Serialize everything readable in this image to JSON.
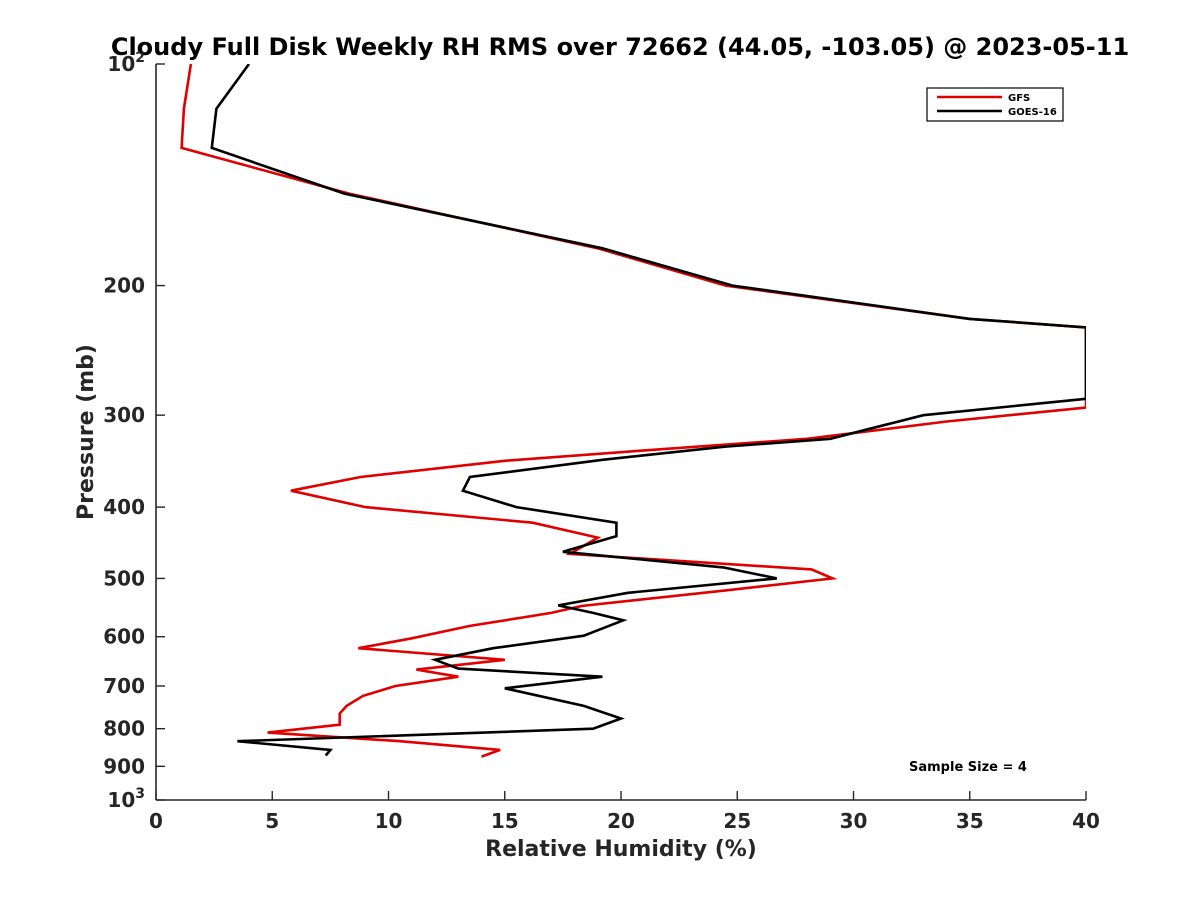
{
  "chart_data": {
    "type": "line",
    "title": "Cloudy Full Disk Weekly RH RMS over 72662 (44.05, -103.05) @ 2023-05-11",
    "xlabel": "Relative Humidity (%)",
    "ylabel": "Pressure (mb)",
    "xlim": [
      0,
      40
    ],
    "ylim": [
      100,
      1000
    ],
    "y_scale": "log",
    "y_reversed": true,
    "grid": false,
    "legend_position": "top-right",
    "x_ticks": [
      0,
      5,
      10,
      15,
      20,
      25,
      30,
      35,
      40
    ],
    "x_tick_labels": [
      "0",
      "5",
      "10",
      "15",
      "20",
      "25",
      "30",
      "35",
      "40"
    ],
    "y_ticks": [
      {
        "value": 200,
        "label": "200"
      },
      {
        "value": 300,
        "label": "300"
      },
      {
        "value": 400,
        "label": "400"
      },
      {
        "value": 500,
        "label": "500"
      },
      {
        "value": 600,
        "label": "600"
      },
      {
        "value": 700,
        "label": "700"
      },
      {
        "value": 800,
        "label": "800"
      },
      {
        "value": 900,
        "label": "900"
      }
    ],
    "y_power_ticks": [
      {
        "value": 100,
        "base": "10",
        "exp": "2"
      },
      {
        "value": 1000,
        "base": "10",
        "exp": "3"
      }
    ],
    "annotation": "Sample Size = 4",
    "series": [
      {
        "name": "GFS",
        "color": "#e00000",
        "points": [
          [
            1.5,
            100
          ],
          [
            1.2,
            115
          ],
          [
            1.1,
            130
          ],
          [
            8.3,
            150
          ],
          [
            19.0,
            178
          ],
          [
            24.5,
            200
          ],
          [
            35.0,
            222
          ],
          [
            40.0,
            228
          ],
          [
            40.0,
            293
          ],
          [
            34.0,
            306
          ],
          [
            28.0,
            323
          ],
          [
            21.0,
            335
          ],
          [
            15.0,
            346
          ],
          [
            8.8,
            364
          ],
          [
            5.8,
            380
          ],
          [
            9.0,
            400
          ],
          [
            16.2,
            420
          ],
          [
            19.0,
            440
          ],
          [
            17.8,
            463
          ],
          [
            28.2,
            486
          ],
          [
            29.1,
            500
          ],
          [
            24.5,
            519
          ],
          [
            18.3,
            545
          ],
          [
            17.0,
            557
          ],
          [
            13.5,
            580
          ],
          [
            11.0,
            603
          ],
          [
            8.7,
            622
          ],
          [
            15.0,
            645
          ],
          [
            11.2,
            665
          ],
          [
            13.0,
            680
          ],
          [
            10.3,
            700
          ],
          [
            8.9,
            722
          ],
          [
            8.2,
            745
          ],
          [
            7.9,
            763
          ],
          [
            7.9,
            790
          ],
          [
            4.8,
            810
          ],
          [
            10.5,
            832
          ],
          [
            14.8,
            855
          ],
          [
            14.0,
            873
          ]
        ]
      },
      {
        "name": "GOES-16",
        "color": "#000000",
        "points": [
          [
            4.0,
            100
          ],
          [
            2.6,
            115
          ],
          [
            2.4,
            130
          ],
          [
            8.1,
            150
          ],
          [
            19.2,
            178
          ],
          [
            24.8,
            200
          ],
          [
            35.0,
            222
          ],
          [
            40.0,
            228
          ],
          [
            40.0,
            285
          ],
          [
            33.0,
            300
          ],
          [
            29.0,
            323
          ],
          [
            24.5,
            331
          ],
          [
            19.2,
            345
          ],
          [
            13.5,
            364
          ],
          [
            13.2,
            380
          ],
          [
            15.5,
            400
          ],
          [
            19.8,
            420
          ],
          [
            19.8,
            438
          ],
          [
            17.5,
            460
          ],
          [
            24.4,
            483
          ],
          [
            26.7,
            500
          ],
          [
            20.3,
            523
          ],
          [
            17.3,
            544
          ],
          [
            18.8,
            557
          ],
          [
            20.1,
            570
          ],
          [
            18.4,
            598
          ],
          [
            14.5,
            622
          ],
          [
            12.0,
            645
          ],
          [
            13.0,
            663
          ],
          [
            19.2,
            680
          ],
          [
            15.0,
            705
          ],
          [
            18.4,
            745
          ],
          [
            20.0,
            775
          ],
          [
            18.8,
            800
          ],
          [
            3.5,
            832
          ],
          [
            7.5,
            855
          ],
          [
            7.3,
            870
          ]
        ]
      }
    ]
  }
}
